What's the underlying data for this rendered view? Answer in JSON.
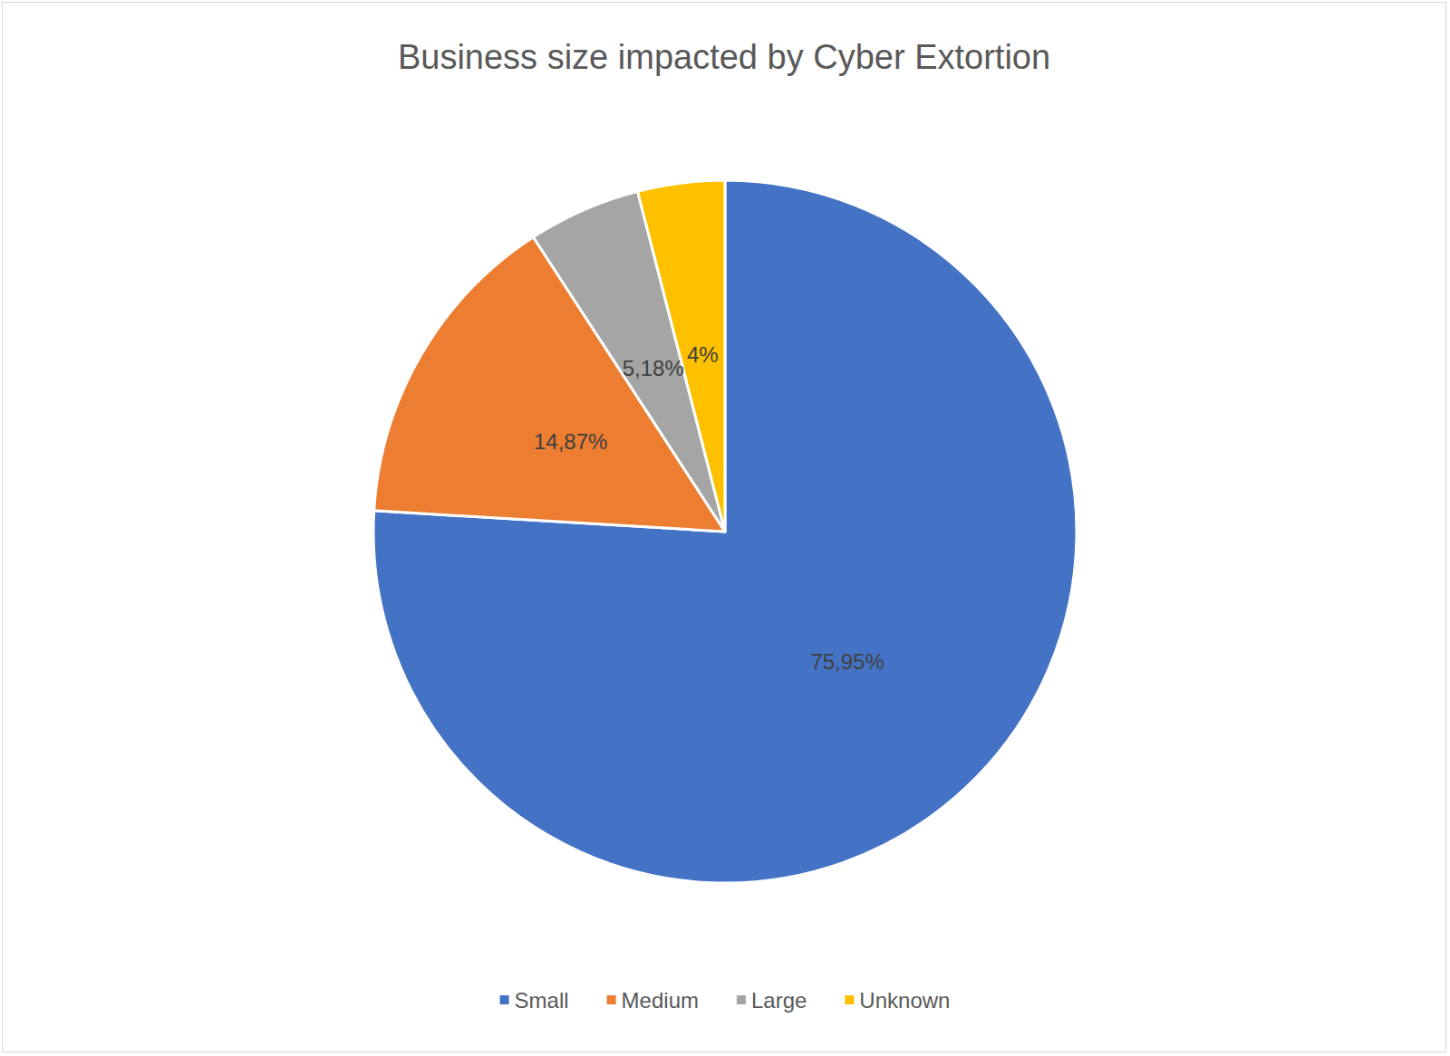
{
  "chart_data": {
    "type": "pie",
    "title": "Business size impacted by Cyber Extortion",
    "categories": [
      "Small",
      "Medium",
      "Large",
      "Unknown"
    ],
    "values": [
      75.95,
      14.87,
      5.18,
      4
    ],
    "value_labels": [
      "75,95%",
      "14,87%",
      "5,18%",
      "4%"
    ],
    "colors": [
      "#4472c4",
      "#ed7d31",
      "#a5a5a5",
      "#ffc000"
    ],
    "data_labels": true,
    "legend": "bottom"
  }
}
